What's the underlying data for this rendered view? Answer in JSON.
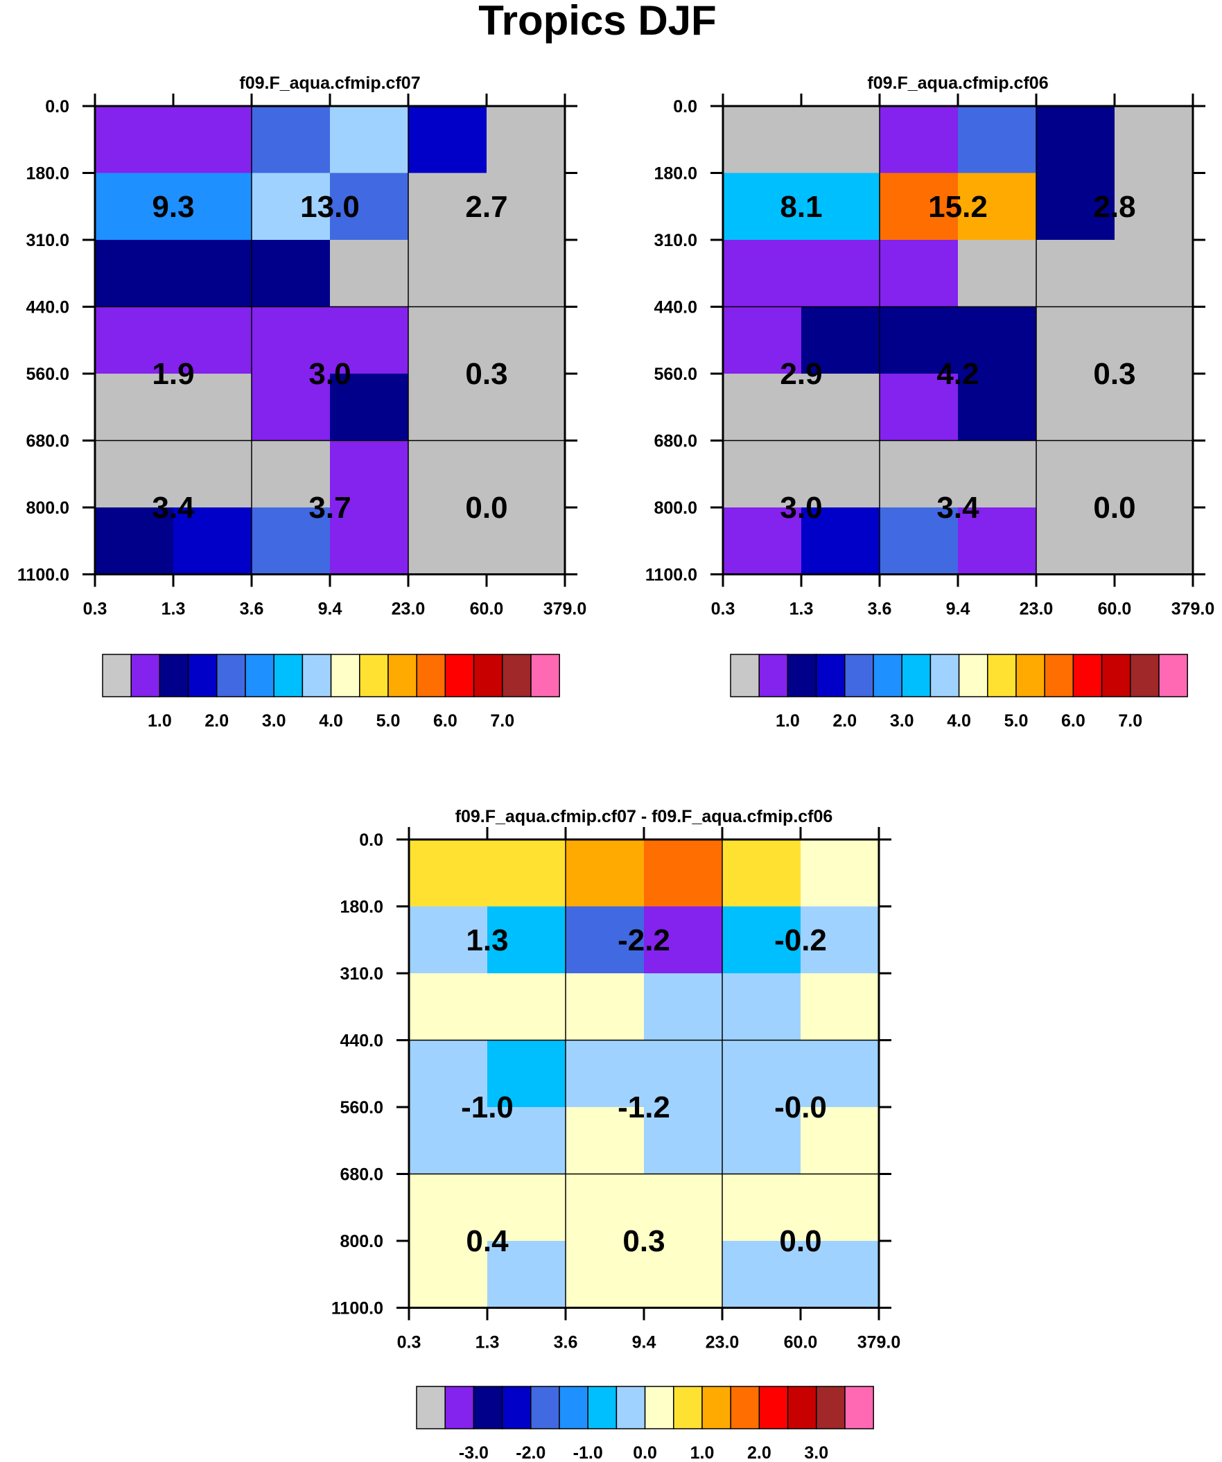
{
  "figure_title": "Tropics DJF",
  "chart_data": [
    {
      "type": "heatmap",
      "title": "f09.F_aqua.cfmip.cf07",
      "x_tick_labels": [
        "0.3",
        "1.3",
        "3.6",
        "9.4",
        "23.0",
        "60.0",
        "379.0"
      ],
      "y_tick_labels": [
        "0.0",
        "180.0",
        "310.0",
        "440.0",
        "560.0",
        "680.0",
        "800.0",
        "1100.0"
      ],
      "cell_colors": [
        [
          "#8422ee",
          "#8422ee",
          "#4169e1",
          "#a0d2ff",
          "#0000c8",
          "#c0c0c0"
        ],
        [
          "#1e90ff",
          "#1e90ff",
          "#a0d2ff",
          "#4169e1",
          "#c0c0c0",
          "#c0c0c0"
        ],
        [
          "#00008b",
          "#00008b",
          "#00008b",
          "#c0c0c0",
          "#c0c0c0",
          "#c0c0c0"
        ],
        [
          "#8422ee",
          "#8422ee",
          "#8422ee",
          "#8422ee",
          "#c0c0c0",
          "#c0c0c0"
        ],
        [
          "#c0c0c0",
          "#c0c0c0",
          "#8422ee",
          "#00008b",
          "#c0c0c0",
          "#c0c0c0"
        ],
        [
          "#c0c0c0",
          "#c0c0c0",
          "#c0c0c0",
          "#8422ee",
          "#c0c0c0",
          "#c0c0c0"
        ],
        [
          "#00008b",
          "#0000c8",
          "#4169e1",
          "#8422ee",
          "#c0c0c0",
          "#c0c0c0"
        ]
      ],
      "block_values": [
        [
          "9.3",
          "13.0",
          "2.7"
        ],
        [
          "1.9",
          "3.0",
          "0.3"
        ],
        [
          "3.4",
          "3.7",
          "0.0"
        ]
      ],
      "colorbar": {
        "colors": [
          "#c8c8c8",
          "#8422ee",
          "#00008b",
          "#0000c8",
          "#4169e1",
          "#1e90ff",
          "#00bfff",
          "#a0d2ff",
          "#ffffc8",
          "#ffe132",
          "#ffaa00",
          "#ff6e00",
          "#ff0000",
          "#c80000",
          "#a02828",
          "#ff69b4"
        ],
        "labels": [
          "1.0",
          "2.0",
          "3.0",
          "4.0",
          "5.0",
          "6.0",
          "7.0"
        ]
      }
    },
    {
      "type": "heatmap",
      "title": "f09.F_aqua.cfmip.cf06",
      "x_tick_labels": [
        "0.3",
        "1.3",
        "3.6",
        "9.4",
        "23.0",
        "60.0",
        "379.0"
      ],
      "y_tick_labels": [
        "0.0",
        "180.0",
        "310.0",
        "440.0",
        "560.0",
        "680.0",
        "800.0",
        "1100.0"
      ],
      "cell_colors": [
        [
          "#c0c0c0",
          "#c0c0c0",
          "#8422ee",
          "#4169e1",
          "#00008b",
          "#c0c0c0"
        ],
        [
          "#00bfff",
          "#00bfff",
          "#ff6e00",
          "#ffaa00",
          "#00008b",
          "#c0c0c0"
        ],
        [
          "#8422ee",
          "#8422ee",
          "#8422ee",
          "#c0c0c0",
          "#c0c0c0",
          "#c0c0c0"
        ],
        [
          "#8422ee",
          "#00008b",
          "#00008b",
          "#00008b",
          "#c0c0c0",
          "#c0c0c0"
        ],
        [
          "#c0c0c0",
          "#c0c0c0",
          "#8422ee",
          "#00008b",
          "#c0c0c0",
          "#c0c0c0"
        ],
        [
          "#c0c0c0",
          "#c0c0c0",
          "#c0c0c0",
          "#c0c0c0",
          "#c0c0c0",
          "#c0c0c0"
        ],
        [
          "#8422ee",
          "#0000c8",
          "#4169e1",
          "#8422ee",
          "#c0c0c0",
          "#c0c0c0"
        ]
      ],
      "block_values": [
        [
          "8.1",
          "15.2",
          "2.8"
        ],
        [
          "2.9",
          "4.2",
          "0.3"
        ],
        [
          "3.0",
          "3.4",
          "0.0"
        ]
      ],
      "colorbar": {
        "colors": [
          "#c8c8c8",
          "#8422ee",
          "#00008b",
          "#0000c8",
          "#4169e1",
          "#1e90ff",
          "#00bfff",
          "#a0d2ff",
          "#ffffc8",
          "#ffe132",
          "#ffaa00",
          "#ff6e00",
          "#ff0000",
          "#c80000",
          "#a02828",
          "#ff69b4"
        ],
        "labels": [
          "1.0",
          "2.0",
          "3.0",
          "4.0",
          "5.0",
          "6.0",
          "7.0"
        ]
      }
    },
    {
      "type": "heatmap",
      "title": "f09.F_aqua.cfmip.cf07 - f09.F_aqua.cfmip.cf06",
      "x_tick_labels": [
        "0.3",
        "1.3",
        "3.6",
        "9.4",
        "23.0",
        "60.0",
        "379.0"
      ],
      "y_tick_labels": [
        "0.0",
        "180.0",
        "310.0",
        "440.0",
        "560.0",
        "680.0",
        "800.0",
        "1100.0"
      ],
      "cell_colors": [
        [
          "#ffe132",
          "#ffe132",
          "#ffaa00",
          "#ff6e00",
          "#ffe132",
          "#ffffc8"
        ],
        [
          "#a0d2ff",
          "#00bfff",
          "#4169e1",
          "#8422ee",
          "#00bfff",
          "#a0d2ff"
        ],
        [
          "#ffffc8",
          "#ffffc8",
          "#ffffc8",
          "#a0d2ff",
          "#a0d2ff",
          "#ffffc8"
        ],
        [
          "#a0d2ff",
          "#00bfff",
          "#a0d2ff",
          "#a0d2ff",
          "#a0d2ff",
          "#a0d2ff"
        ],
        [
          "#a0d2ff",
          "#a0d2ff",
          "#ffffc8",
          "#a0d2ff",
          "#a0d2ff",
          "#ffffc8"
        ],
        [
          "#ffffc8",
          "#ffffc8",
          "#ffffc8",
          "#ffffc8",
          "#ffffc8",
          "#ffffc8"
        ],
        [
          "#ffffc8",
          "#a0d2ff",
          "#ffffc8",
          "#ffffc8",
          "#a0d2ff",
          "#a0d2ff"
        ]
      ],
      "block_values": [
        [
          "1.3",
          "-2.2",
          "-0.2"
        ],
        [
          "-1.0",
          "-1.2",
          "-0.0"
        ],
        [
          "0.4",
          "0.3",
          "0.0"
        ]
      ],
      "colorbar": {
        "colors": [
          "#c8c8c8",
          "#8422ee",
          "#00008b",
          "#0000c8",
          "#4169e1",
          "#1e90ff",
          "#00bfff",
          "#a0d2ff",
          "#ffffc8",
          "#ffe132",
          "#ffaa00",
          "#ff6e00",
          "#ff0000",
          "#c80000",
          "#a02828",
          "#ff69b4"
        ],
        "labels": [
          "-3.0",
          "-2.0",
          "-1.0",
          "0.0",
          "1.0",
          "2.0",
          "3.0"
        ]
      }
    }
  ]
}
